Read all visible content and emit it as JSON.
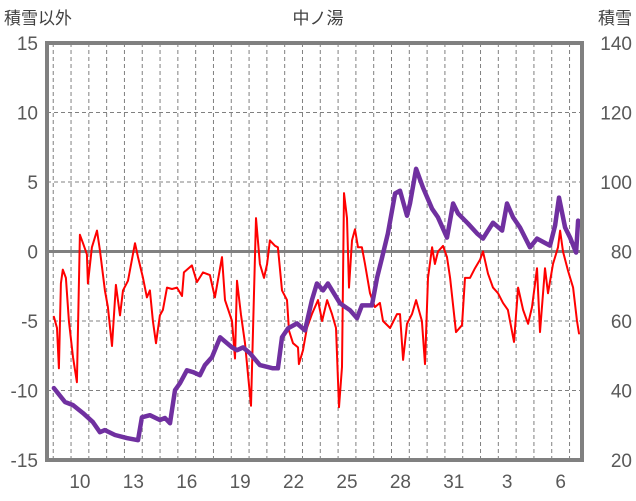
{
  "chart_data": {
    "type": "line",
    "title": "中ノ湯",
    "ylabel_left": "積雪以外",
    "ylabel_right": "積雪",
    "ylim_left": [
      -15,
      15
    ],
    "ylim_right": [
      20,
      140
    ],
    "yticks_left": [
      "15",
      "10",
      "5",
      "0",
      "-5",
      "-10",
      "-15"
    ],
    "yticks_right": [
      "140",
      "120",
      "100",
      "80",
      "60",
      "40",
      "20"
    ],
    "xlim_days": [
      8.15,
      38.2
    ],
    "xticks": [
      {
        "day": 10,
        "label": "10"
      },
      {
        "day": 13,
        "label": "13"
      },
      {
        "day": 16,
        "label": "16"
      },
      {
        "day": 19,
        "label": "19"
      },
      {
        "day": 22,
        "label": "22"
      },
      {
        "day": 25,
        "label": "25"
      },
      {
        "day": 28,
        "label": "28"
      },
      {
        "day": 31,
        "label": "31"
      },
      {
        "day": 34,
        "label": "3"
      },
      {
        "day": 37,
        "label": "6"
      }
    ],
    "grid": true,
    "series": [
      {
        "name": "積雪以外",
        "axis": "left",
        "color": "#ff0000",
        "x": [
          8.54,
          8.71,
          8.82,
          8.93,
          9.04,
          9.21,
          9.38,
          9.61,
          9.83,
          10,
          10.17,
          10.39,
          10.45,
          10.67,
          10.96,
          11.12,
          11.4,
          11.57,
          11.8,
          12.02,
          12.25,
          12.42,
          12.7,
          13.09,
          13.26,
          13.54,
          13.76,
          13.93,
          14.1,
          14.27,
          14.49,
          14.66,
          14.89,
          15.17,
          15.45,
          15.73,
          15.84,
          16.29,
          16.57,
          16.91,
          17.3,
          17.58,
          17.98,
          18.15,
          18.54,
          18.71,
          18.82,
          19.04,
          19.27,
          19.61,
          19.89,
          20.11,
          20.34,
          20.51,
          20.67,
          20.96,
          21.12,
          21.35,
          21.63,
          21.74,
          21.97,
          22.25,
          22.3,
          22.53,
          22.75,
          23.03,
          23.37,
          23.6,
          23.88,
          24.16,
          24.38,
          24.55,
          24.72,
          24.83,
          25,
          25.11,
          25.28,
          25.45,
          25.62,
          25.84,
          26.01,
          26.29,
          26.57,
          26.85,
          27.02,
          27.42,
          27.81,
          27.98,
          28.15,
          28.37,
          28.65,
          28.88,
          29.21,
          29.38,
          29.55,
          29.78,
          29.94,
          30.11,
          30.39,
          30.62,
          30.79,
          31.12,
          31.46,
          31.63,
          31.91,
          32.19,
          32.47,
          32.64,
          32.92,
          33.2,
          33.48,
          33.76,
          34.04,
          34.38,
          34.61,
          34.89,
          35.17,
          35.39,
          35.67,
          35.84,
          36.12,
          36.29,
          36.57,
          36.85,
          36.97,
          37.13,
          37.42,
          37.7,
          37.92,
          38.03
        ],
        "values": [
          -4.7,
          -5.5,
          -8.4,
          -2.3,
          -1.3,
          -1.9,
          -5,
          -7.6,
          -9.4,
          1.2,
          0.6,
          -0.2,
          -2.3,
          0.3,
          1.5,
          0.1,
          -2.8,
          -4,
          -6.8,
          -2.4,
          -4.6,
          -2.8,
          -2.1,
          0.6,
          -0.4,
          -1.9,
          -3.3,
          -2.8,
          -5,
          -6.6,
          -4.6,
          -4.2,
          -2.6,
          -2.7,
          -2.6,
          -3.2,
          -1.5,
          -1,
          -2.2,
          -1.5,
          -1.7,
          -3.3,
          -0.4,
          -3.5,
          -5,
          -7.7,
          -2.1,
          -4.5,
          -6.6,
          -11.1,
          2.4,
          -0.9,
          -1.9,
          -0.9,
          0.8,
          0.4,
          0.3,
          -2.8,
          -3.5,
          -5.7,
          -6.6,
          -6.9,
          -8.1,
          -7.1,
          -5.5,
          -4.5,
          -3.5,
          -5,
          -3.5,
          -4.5,
          -5.5,
          -11.2,
          -8.3,
          4.2,
          2.4,
          -2.6,
          0.8,
          1.6,
          0.3,
          0.3,
          -0.9,
          -3,
          -4,
          -3.7,
          -5,
          -5.5,
          -4.5,
          -4.5,
          -7.8,
          -5.2,
          -4.5,
          -3.5,
          -5,
          -8.1,
          -1.9,
          0.3,
          -0.9,
          0,
          0.4,
          -0.4,
          -1.9,
          -5.8,
          -5.3,
          -1.9,
          -1.9,
          -1.2,
          -0.6,
          0,
          -1.6,
          -2.6,
          -3,
          -3.7,
          -4.2,
          -6.5,
          -2.6,
          -4.2,
          -5.2,
          -4,
          -1.2,
          -5.8,
          -1.2,
          -3,
          -0.9,
          0.3,
          1.5,
          0,
          -1.4,
          -2.6,
          -5,
          -5.9
        ]
      },
      {
        "name": "積雪",
        "axis": "right",
        "color": "#7030a0",
        "x": [
          8.54,
          9.16,
          9.61,
          10.17,
          10.73,
          11.12,
          11.4,
          11.97,
          12.64,
          13.26,
          13.48,
          13.93,
          14.49,
          14.78,
          15.06,
          15.34,
          15.62,
          16.01,
          16.35,
          16.74,
          17.02,
          17.42,
          17.87,
          18.26,
          18.54,
          18.82,
          19.16,
          19.55,
          20.11,
          20.84,
          21.12,
          21.35,
          21.69,
          22.19,
          22.64,
          23.03,
          23.31,
          23.65,
          23.93,
          24.61,
          25.17,
          25.56,
          25.84,
          26.4,
          26.69,
          26.97,
          27.3,
          27.7,
          27.98,
          28.37,
          28.54,
          28.88,
          29.27,
          29.78,
          30.11,
          30.62,
          30.96,
          31.24,
          31.8,
          32.3,
          32.64,
          33.2,
          33.71,
          33.99,
          34.33,
          34.72,
          35.28,
          35.67,
          36.4,
          36.69,
          36.91,
          37.25,
          37.53,
          37.87,
          37.98
        ],
        "values": [
          40.7,
          36.7,
          35.8,
          33.5,
          30.9,
          28,
          28.6,
          27.2,
          26.3,
          25.7,
          32.3,
          32.9,
          31.5,
          32.1,
          30.6,
          40.1,
          42.1,
          45.8,
          45.3,
          44.4,
          47.3,
          49.6,
          55.3,
          53.6,
          52.4,
          51.6,
          52.4,
          50.7,
          47.3,
          46.4,
          46.4,
          55.3,
          57.9,
          59.3,
          57.3,
          66,
          70.8,
          68.8,
          70.8,
          65.1,
          63.1,
          60.8,
          64.5,
          64.5,
          72.5,
          78.3,
          85.2,
          96.7,
          97.5,
          90.3,
          93.8,
          103.8,
          98.4,
          92.3,
          89.8,
          84,
          93.8,
          90.9,
          88,
          85.2,
          83.7,
          88.3,
          86,
          93.8,
          89.8,
          86.9,
          81.2,
          83.7,
          81.7,
          87.5,
          95.5,
          86.9,
          84,
          79.7,
          88.9
        ]
      }
    ]
  }
}
